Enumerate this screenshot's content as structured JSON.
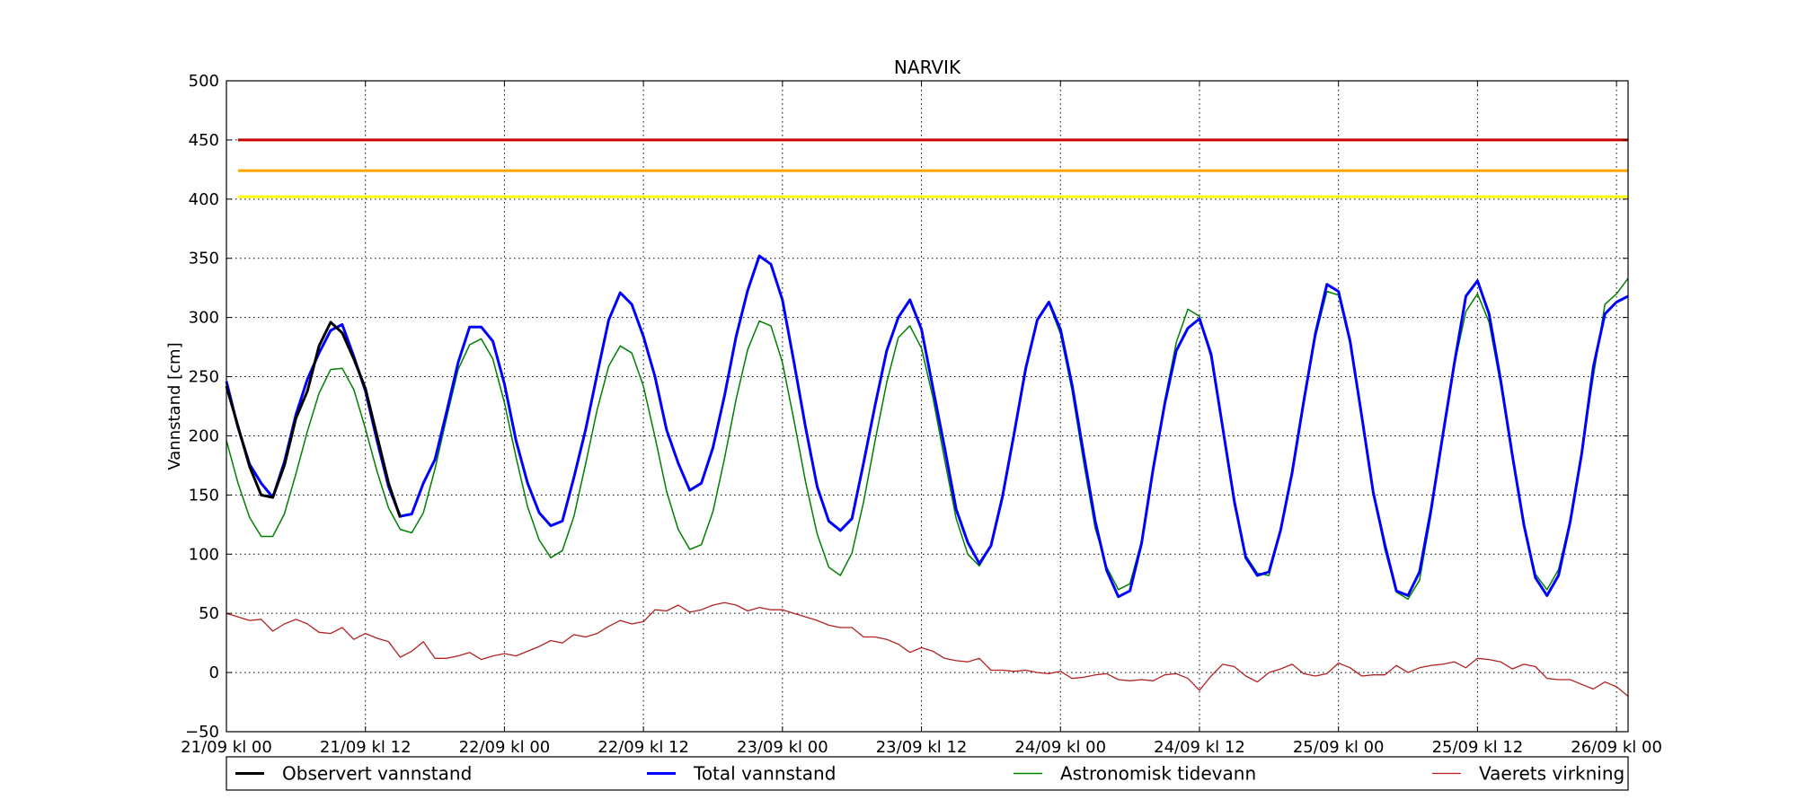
{
  "chart_data": {
    "type": "line",
    "title": "NARVIK",
    "ylabel": "Vannstand [cm]",
    "xlabel": "",
    "ylim": [
      -50,
      500
    ],
    "yticks": [
      -50,
      0,
      50,
      100,
      150,
      200,
      250,
      300,
      350,
      400,
      450,
      500
    ],
    "xlim": [
      0,
      121
    ],
    "xticks": [
      {
        "hour": 0,
        "label": "21/09 kl 00"
      },
      {
        "hour": 12,
        "label": "21/09 kl 12"
      },
      {
        "hour": 24,
        "label": "22/09 kl 00"
      },
      {
        "hour": 36,
        "label": "22/09 kl 12"
      },
      {
        "hour": 48,
        "label": "23/09 kl 00"
      },
      {
        "hour": 60,
        "label": "23/09 kl 12"
      },
      {
        "hour": 72,
        "label": "24/09 kl 00"
      },
      {
        "hour": 84,
        "label": "24/09 kl 12"
      },
      {
        "hour": 96,
        "label": "25/09 kl 00"
      },
      {
        "hour": 108,
        "label": "25/09 kl 12"
      },
      {
        "hour": 120,
        "label": "26/09 kl 00"
      }
    ],
    "grid": true,
    "legend_position": "below",
    "reference_lines": [
      {
        "value": 450,
        "color": "#cc0000"
      },
      {
        "value": 424,
        "color": "#ffa500"
      },
      {
        "value": 402,
        "color": "#ffff00"
      }
    ],
    "series": [
      {
        "name": "Observert vannstand",
        "color": "#000000",
        "x": [
          0,
          1,
          2,
          3,
          4,
          5,
          6,
          7,
          8,
          9,
          10,
          11,
          12,
          13,
          14,
          15
        ],
        "y": [
          242,
          208,
          174,
          150,
          148,
          175,
          215,
          238,
          276,
          296,
          287,
          265,
          240,
          200,
          160,
          131
        ]
      },
      {
        "name": "Total vannstand",
        "color": "#0000ff",
        "x": [
          0,
          1,
          2,
          3,
          4,
          5,
          6,
          7,
          8,
          9,
          10,
          11,
          12,
          13,
          14,
          15,
          16,
          17,
          18,
          19,
          20,
          21,
          22,
          23,
          24,
          25,
          26,
          27,
          28,
          29,
          30,
          31,
          32,
          33,
          34,
          35,
          36,
          37,
          38,
          39,
          40,
          41,
          42,
          43,
          44,
          45,
          46,
          47,
          48,
          49,
          50,
          51,
          52,
          53,
          54,
          55,
          56,
          57,
          58,
          59,
          60,
          61,
          62,
          63,
          64,
          65,
          66,
          67,
          68,
          69,
          70,
          71,
          72,
          73,
          74,
          75,
          76,
          77,
          78,
          79,
          80,
          81,
          82,
          83,
          84,
          85,
          86,
          87,
          88,
          89,
          90,
          91,
          92,
          93,
          94,
          95,
          96,
          97,
          98,
          99,
          100,
          101,
          102,
          103,
          104,
          105,
          106,
          107,
          108,
          109,
          110,
          111,
          112,
          113,
          114,
          115,
          116,
          117,
          118,
          119,
          120,
          121
        ],
        "y": [
          246,
          207,
          176,
          160,
          148,
          178,
          218,
          248,
          270,
          289,
          294,
          267,
          238,
          196,
          157,
          132,
          134,
          160,
          180,
          220,
          262,
          292,
          292,
          280,
          244,
          196,
          160,
          135,
          124,
          128,
          165,
          205,
          252,
          298,
          321,
          311,
          284,
          250,
          205,
          177,
          154,
          160,
          190,
          234,
          284,
          323,
          352,
          345,
          315,
          262,
          207,
          157,
          128,
          120,
          130,
          177,
          226,
          272,
          300,
          315,
          290,
          240,
          190,
          138,
          110,
          92,
          107,
          149,
          202,
          257,
          298,
          313,
          290,
          243,
          185,
          128,
          86,
          64,
          69,
          109,
          172,
          227,
          272,
          291,
          299,
          269,
          207,
          145,
          97,
          82,
          85,
          120,
          169,
          229,
          286,
          328,
          322,
          280,
          217,
          152,
          108,
          69,
          65,
          85,
          138,
          200,
          261,
          318,
          331,
          303,
          247,
          184,
          125,
          80,
          65,
          82,
          127,
          185,
          258,
          303,
          313,
          318
        ]
      },
      {
        "name": "Astronomisk tidevann",
        "color": "#008000",
        "x": [
          0,
          1,
          2,
          3,
          4,
          5,
          6,
          7,
          8,
          9,
          10,
          11,
          12,
          13,
          14,
          15,
          16,
          17,
          18,
          19,
          20,
          21,
          22,
          23,
          24,
          25,
          26,
          27,
          28,
          29,
          30,
          31,
          32,
          33,
          34,
          35,
          36,
          37,
          38,
          39,
          40,
          41,
          42,
          43,
          44,
          45,
          46,
          47,
          48,
          49,
          50,
          51,
          52,
          53,
          54,
          55,
          56,
          57,
          58,
          59,
          60,
          61,
          62,
          63,
          64,
          65,
          66,
          67,
          68,
          69,
          70,
          71,
          72,
          73,
          74,
          75,
          76,
          77,
          78,
          79,
          80,
          81,
          82,
          83,
          84,
          85,
          86,
          87,
          88,
          89,
          90,
          91,
          92,
          93,
          94,
          95,
          96,
          97,
          98,
          99,
          100,
          101,
          102,
          103,
          104,
          105,
          106,
          107,
          108,
          109,
          110,
          111,
          112,
          113,
          114,
          115,
          116,
          117,
          118,
          119,
          120,
          121
        ],
        "y": [
          196,
          160,
          131,
          115,
          115,
          134,
          168,
          204,
          236,
          256,
          257,
          239,
          206,
          170,
          139,
          121,
          118,
          135,
          172,
          215,
          256,
          277,
          282,
          265,
          228,
          182,
          140,
          112,
          97,
          103,
          132,
          176,
          222,
          259,
          276,
          270,
          242,
          199,
          153,
          121,
          104,
          108,
          136,
          181,
          231,
          273,
          297,
          293,
          262,
          213,
          161,
          117,
          89,
          82,
          101,
          144,
          196,
          245,
          283,
          293,
          274,
          232,
          180,
          130,
          100,
          90,
          107,
          146,
          201,
          255,
          297,
          312,
          286,
          238,
          178,
          122,
          89,
          70,
          75,
          111,
          170,
          230,
          279,
          307,
          301,
          266,
          206,
          142,
          99,
          84,
          82,
          119,
          170,
          229,
          283,
          322,
          319,
          278,
          215,
          152,
          104,
          68,
          62,
          78,
          134,
          200,
          260,
          305,
          320,
          296,
          243,
          183,
          125,
          83,
          70,
          87,
          129,
          187,
          250,
          311,
          320,
          333
        ]
      },
      {
        "name": "Vaerets virkning",
        "color": "#b22222",
        "x": [
          0,
          1,
          2,
          3,
          4,
          5,
          6,
          7,
          8,
          9,
          10,
          11,
          12,
          13,
          14,
          15,
          16,
          17,
          18,
          19,
          20,
          21,
          22,
          23,
          24,
          25,
          26,
          27,
          28,
          29,
          30,
          31,
          32,
          33,
          34,
          35,
          36,
          37,
          38,
          39,
          40,
          41,
          42,
          43,
          44,
          45,
          46,
          47,
          48,
          49,
          50,
          51,
          52,
          53,
          54,
          55,
          56,
          57,
          58,
          59,
          60,
          61,
          62,
          63,
          64,
          65,
          66,
          67,
          68,
          69,
          70,
          71,
          72,
          73,
          74,
          75,
          76,
          77,
          78,
          79,
          80,
          81,
          82,
          83,
          84,
          85,
          86,
          87,
          88,
          89,
          90,
          91,
          92,
          93,
          94,
          95,
          96,
          97,
          98,
          99,
          100,
          101,
          102,
          103,
          104,
          105,
          106,
          107,
          108,
          109,
          110,
          111,
          112,
          113,
          114,
          115,
          116,
          117,
          118,
          119,
          120,
          121
        ],
        "y": [
          50,
          47,
          44,
          45,
          35,
          41,
          45,
          41,
          34,
          33,
          38,
          28,
          33,
          29,
          26,
          13,
          18,
          26,
          12,
          12,
          14,
          17,
          11,
          14,
          16,
          14,
          18,
          22,
          27,
          25,
          32,
          30,
          33,
          39,
          44,
          41,
          43,
          53,
          52,
          57,
          51,
          53,
          57,
          59,
          57,
          52,
          55,
          53,
          53,
          50,
          47,
          44,
          40,
          38,
          38,
          30,
          30,
          28,
          24,
          17,
          21,
          18,
          12,
          10,
          9,
          12,
          2,
          2,
          1,
          2,
          0,
          -1,
          1,
          -5,
          -4,
          -2,
          -1,
          -6,
          -7,
          -6,
          -7,
          -2,
          -1,
          -5,
          -15,
          -3,
          7,
          5,
          -3,
          -8,
          0,
          3,
          7,
          -1,
          -3,
          -1,
          8,
          4,
          -3,
          -2,
          -2,
          6,
          0,
          4,
          6,
          7,
          9,
          4,
          12,
          11,
          9,
          3,
          7,
          5,
          -5,
          -6,
          -6,
          -10,
          -14,
          -8,
          -12,
          -20
        ]
      }
    ]
  }
}
